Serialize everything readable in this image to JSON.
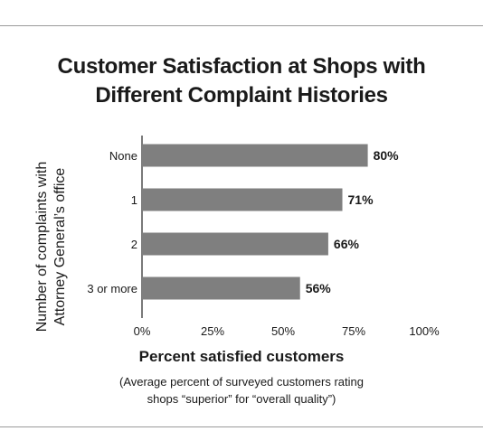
{
  "chart_data": {
    "type": "bar",
    "orientation": "horizontal",
    "title_lines": [
      "Customer Satisfaction at Shops with",
      "Different Complaint Histories"
    ],
    "ylabel_lines": [
      "Number of complaints with",
      "Attorney General’s office"
    ],
    "xlabel": "Percent satisfied customers",
    "note_lines": [
      "(Average percent of surveyed customers rating",
      "shops “superior” for “overall quality”)"
    ],
    "categories": [
      "None",
      "1",
      "2",
      "3 or more"
    ],
    "values": [
      80,
      71,
      66,
      56
    ],
    "value_labels": [
      "80%",
      "71%",
      "66%",
      "56%"
    ],
    "xlim": [
      0,
      100
    ],
    "xticks": [
      0,
      25,
      50,
      75,
      100
    ],
    "xtick_labels": [
      "0%",
      "25%",
      "50%",
      "75%",
      "100%"
    ],
    "bar_color": "#7f7f7f",
    "grid": false
  }
}
